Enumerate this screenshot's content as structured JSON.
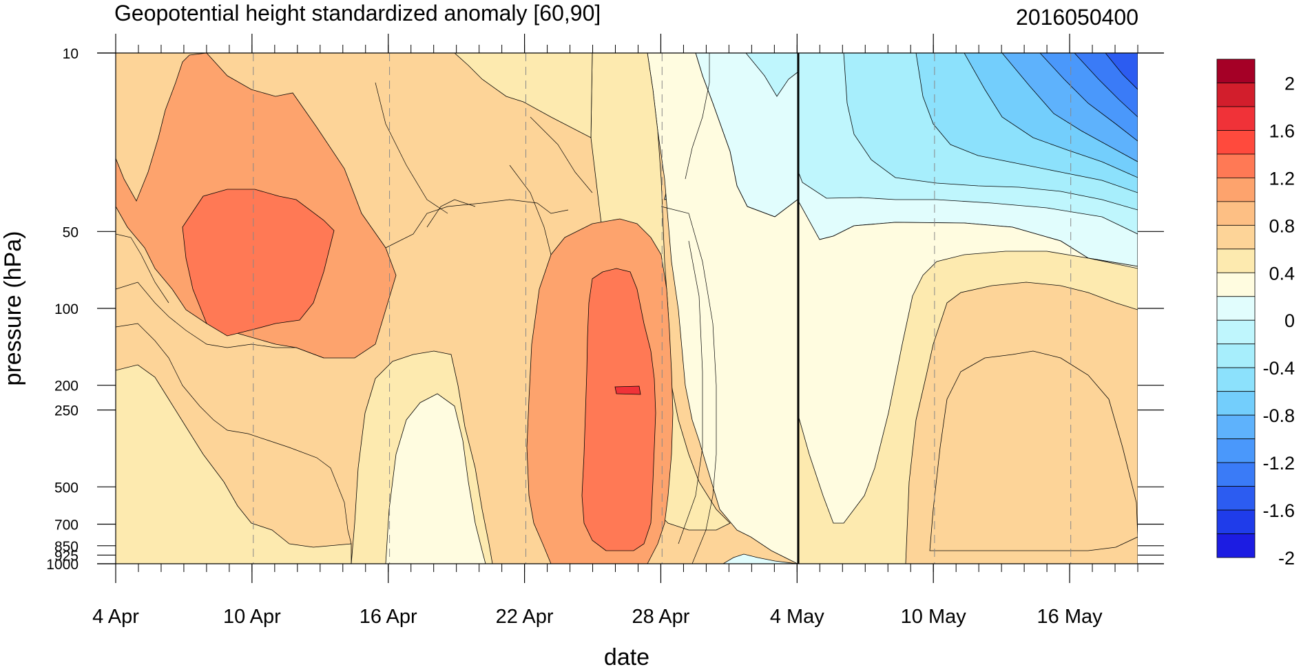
{
  "chart_data": {
    "type": "heatmap",
    "title": "Geopotential height standardized anomaly [60,90]",
    "subtitle_right": "2016050400",
    "xlabel": "date",
    "ylabel": "pressure (hPa)",
    "x_range": [
      "2016-04-04",
      "2016-05-19"
    ],
    "x_ticks": [
      "4 Apr",
      "10 Apr",
      "16 Apr",
      "22 Apr",
      "28 Apr",
      "4 May",
      "10 May",
      "16 May"
    ],
    "y_scale": "log",
    "y_range": [
      1000,
      10
    ],
    "y_ticks": [
      "10",
      "50",
      "100",
      "200",
      "250",
      "500",
      "700",
      "850",
      "925",
      "1000"
    ],
    "grid": "dashed vertical lines at date ticks",
    "current_date_line": "4 May",
    "colorbar": {
      "placement": "right",
      "labels": [
        "2",
        "1.6",
        "1.2",
        "0.8",
        "0.4",
        "0",
        "-0.4",
        "-0.8",
        "-1.2",
        "-1.6",
        "-2"
      ],
      "levels": [
        2.2,
        2.0,
        1.8,
        1.6,
        1.4,
        1.2,
        1.0,
        0.8,
        0.6,
        0.4,
        0.2,
        0,
        -0.2,
        -0.4,
        -0.6,
        -0.8,
        -1.0,
        -1.2,
        -1.4,
        -1.6,
        -1.8,
        -2.0,
        -2.2
      ],
      "colors": [
        "#a50026",
        "#d21e2c",
        "#f03238",
        "#ff4a3d",
        "#ff7955",
        "#fda36d",
        "#fdbf84",
        "#fdd498",
        "#fdeaaf",
        "#fffce0",
        "#e1fdfd",
        "#bff6fd",
        "#a7eefc",
        "#8ce1fc",
        "#73cefc",
        "#5eb2fc",
        "#4a98fb",
        "#3a7bf7",
        "#2c5cf1",
        "#1f3cea",
        "#1c1ce2"
      ]
    },
    "features": [
      {
        "name": "positive anomaly max",
        "date": "2016-04-10",
        "pressure_hPa": 70,
        "value": 1.2
      },
      {
        "name": "positive anomaly max",
        "date": "2016-04-26",
        "pressure_hPa": 200,
        "value": 1.4
      },
      {
        "name": "positive anomaly",
        "date": "2016-05-14",
        "pressure_hPa": 350,
        "value": 0.8
      },
      {
        "name": "negative anomaly min",
        "date": "2016-05-19",
        "pressure_hPa": 10,
        "value": -1.6
      }
    ]
  }
}
